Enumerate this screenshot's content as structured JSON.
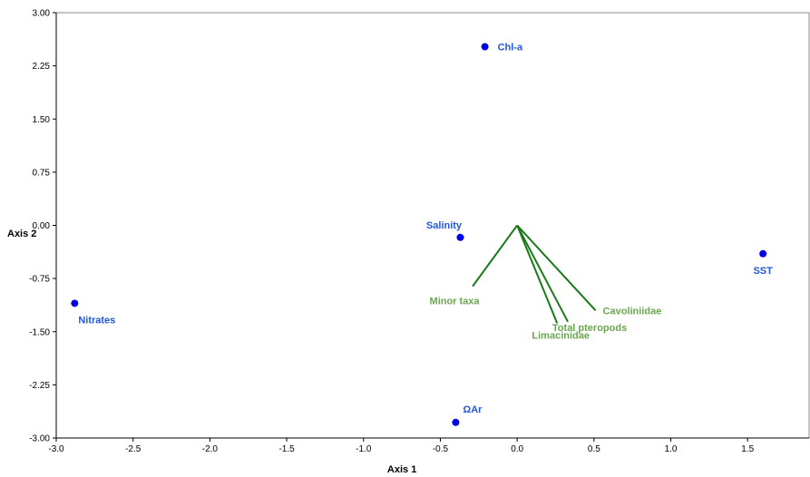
{
  "chart_data": {
    "type": "scatter",
    "title": "",
    "xlabel": "Axis 1",
    "ylabel": "Axis 2",
    "xlim": [
      -3.0,
      1.9
    ],
    "ylim": [
      -3.0,
      3.0
    ],
    "xticks": [
      -3.0,
      -2.5,
      -2.0,
      -1.5,
      -1.0,
      -0.5,
      0.0,
      0.5,
      1.0,
      1.5
    ],
    "xtick_labels": [
      "-3.0",
      "-2.5",
      "-2.0",
      "-1.5",
      "-1.0",
      "-0.5",
      "0.0",
      "0.5",
      "1.0",
      "1.5"
    ],
    "yticks": [
      3.0,
      2.25,
      1.5,
      0.75,
      0.0,
      -0.75,
      -1.5,
      -2.25,
      -3.0
    ],
    "ytick_labels": [
      "3.00",
      "2.25",
      "1.50",
      "0.75",
      "0.00",
      "-0.75",
      "-1.50",
      "-2.25",
      "-3.00"
    ],
    "grid": false,
    "point_color": "#0000e6",
    "point_label_color": "#2255dd",
    "vector_color": "#1a7a1a",
    "vector_label_color": "#6aa84f",
    "points": [
      {
        "label": "Chl-a",
        "x": -0.21,
        "y": 2.52
      },
      {
        "label": "Salinity",
        "x": -0.37,
        "y": -0.17
      },
      {
        "label": "SST",
        "x": 1.6,
        "y": -0.4
      },
      {
        "label": "Nitrates",
        "x": -2.88,
        "y": -1.1
      },
      {
        "label": "ΩAr",
        "x": -0.4,
        "y": -2.78
      }
    ],
    "vectors": [
      {
        "label": "Minor taxa",
        "x": -0.29,
        "y": -0.86
      },
      {
        "label": "Limacinidae",
        "x": 0.26,
        "y": -1.38
      },
      {
        "label": "Total pteropods",
        "x": 0.33,
        "y": -1.36
      },
      {
        "label": "Cavoliniidae",
        "x": 0.51,
        "y": -1.2
      }
    ]
  }
}
